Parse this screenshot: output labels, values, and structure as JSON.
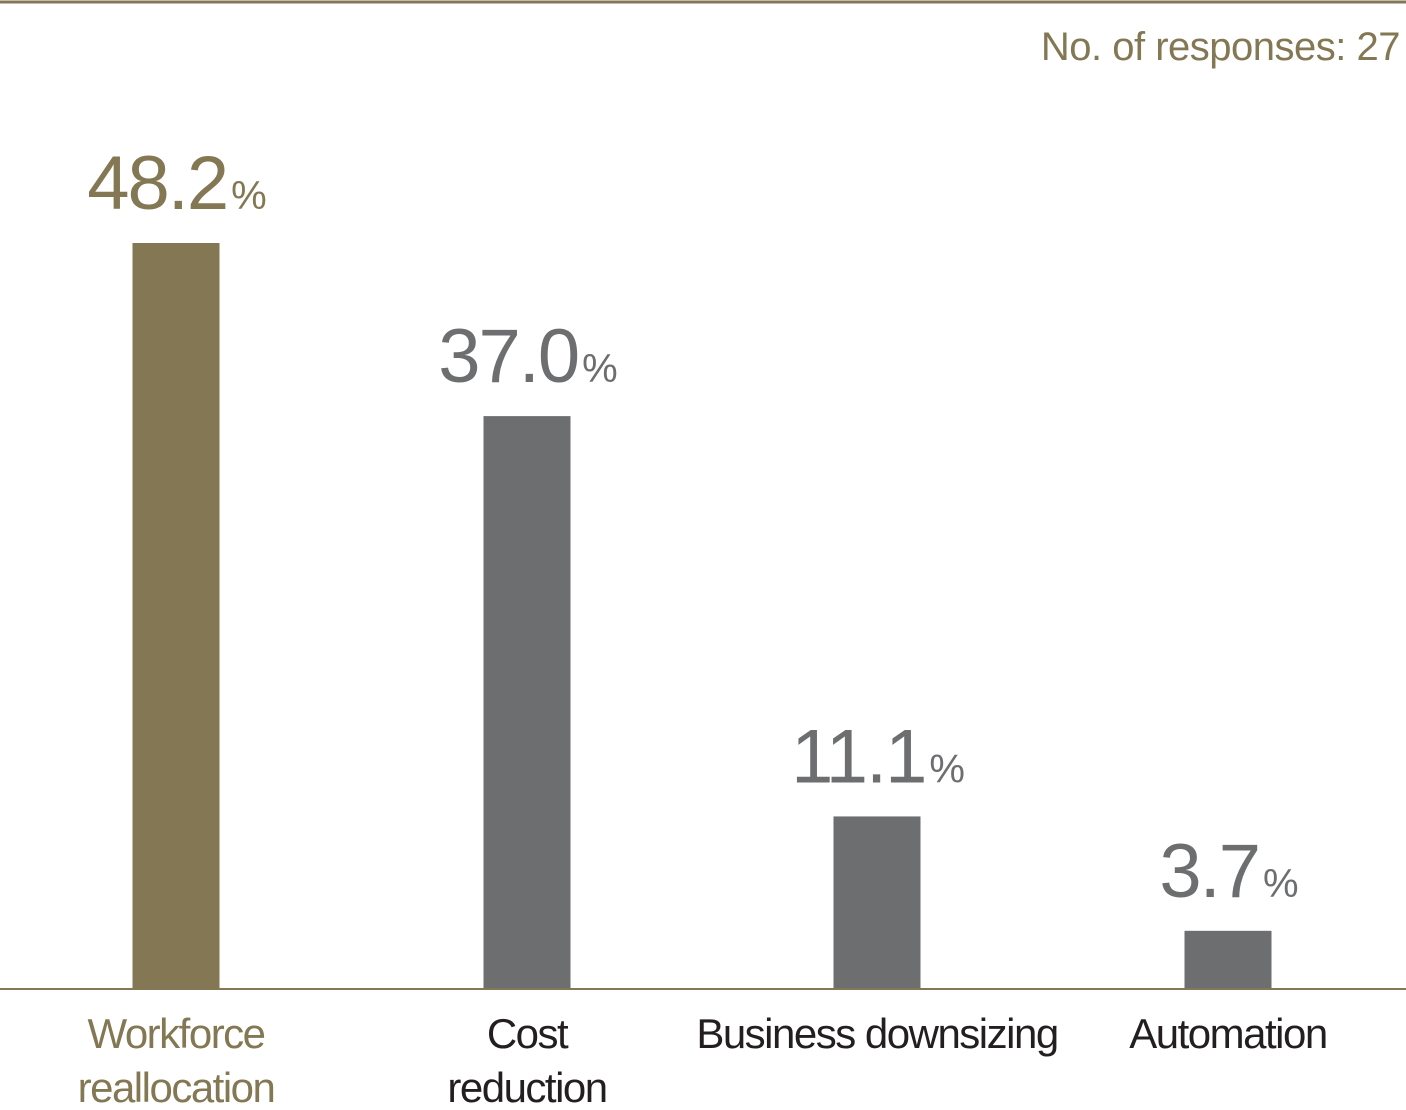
{
  "chart_data": {
    "type": "bar",
    "title": "",
    "xlabel": "",
    "ylabel": "",
    "ylim": [
      0,
      48.2
    ],
    "grid": false,
    "legend": "none",
    "note": "No. of responses: 27",
    "unit": "%",
    "categories": [
      [
        "Workforce",
        "reallocation"
      ],
      [
        "Cost",
        "reduction"
      ],
      [
        "Business downsizing"
      ],
      [
        "Automation"
      ]
    ],
    "values": [
      48.2,
      37.0,
      11.1,
      3.7
    ],
    "value_labels": [
      "48.2",
      "37.0",
      "11.1",
      "3.7"
    ],
    "highlight_index": 0
  },
  "colors": {
    "accent": "#837853",
    "bar": "#6d6e70",
    "value_text": "#6d6e70",
    "category_text": "#231f20",
    "rule": "#837853"
  }
}
